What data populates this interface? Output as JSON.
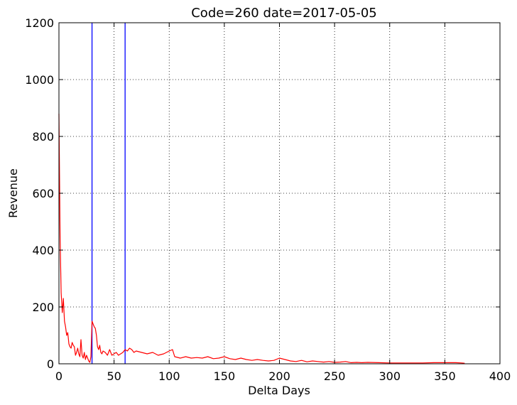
{
  "chart_data": {
    "type": "line",
    "title": "Code=260 date=2017-05-05",
    "xlabel": "Delta Days",
    "ylabel": "Revenue",
    "xlim": [
      0,
      400
    ],
    "ylim": [
      0,
      1200
    ],
    "xticks": [
      0,
      50,
      100,
      150,
      200,
      250,
      300,
      350,
      400
    ],
    "yticks": [
      0,
      200,
      400,
      600,
      800,
      1000,
      1200
    ],
    "grid": true,
    "vlines": [
      30,
      60
    ],
    "colors": {
      "series": "#ff0000",
      "vlines": "#0000ff"
    },
    "series": [
      {
        "x": [
          0,
          1,
          2,
          3,
          4,
          5,
          6,
          7,
          8,
          9,
          10,
          11,
          12,
          13,
          14,
          15,
          16,
          17,
          18,
          19,
          20,
          21,
          22,
          23,
          24,
          25,
          26,
          27,
          28,
          29,
          30,
          31,
          32,
          33,
          34,
          35,
          36,
          37,
          38,
          39,
          40,
          42,
          44,
          46,
          48,
          50,
          52,
          54,
          56,
          58,
          60,
          62,
          64,
          66,
          68,
          70,
          75,
          80,
          85,
          90,
          95,
          100,
          103,
          105,
          110,
          115,
          120,
          125,
          130,
          135,
          140,
          145,
          150,
          155,
          160,
          165,
          170,
          175,
          180,
          185,
          190,
          195,
          200,
          205,
          210,
          215,
          220,
          225,
          230,
          235,
          240,
          245,
          250,
          255,
          260,
          265,
          270,
          275,
          280,
          290,
          300,
          310,
          320,
          330,
          340,
          350,
          360,
          365,
          368
        ],
        "y": [
          880,
          450,
          250,
          180,
          230,
          150,
          130,
          100,
          110,
          70,
          60,
          55,
          75,
          65,
          60,
          30,
          40,
          55,
          35,
          25,
          85,
          30,
          20,
          40,
          15,
          30,
          20,
          10,
          5,
          25,
          150,
          140,
          130,
          125,
          100,
          60,
          50,
          65,
          40,
          35,
          45,
          40,
          30,
          50,
          30,
          35,
          40,
          30,
          35,
          40,
          50,
          45,
          55,
          50,
          40,
          45,
          40,
          35,
          40,
          30,
          35,
          45,
          50,
          25,
          20,
          25,
          20,
          22,
          20,
          25,
          18,
          20,
          25,
          18,
          15,
          20,
          15,
          12,
          15,
          12,
          10,
          12,
          20,
          15,
          10,
          8,
          12,
          7,
          10,
          8,
          6,
          8,
          5,
          6,
          8,
          4,
          5,
          4,
          5,
          4,
          3,
          3,
          3,
          3,
          4,
          4,
          4,
          3,
          2
        ]
      }
    ]
  }
}
